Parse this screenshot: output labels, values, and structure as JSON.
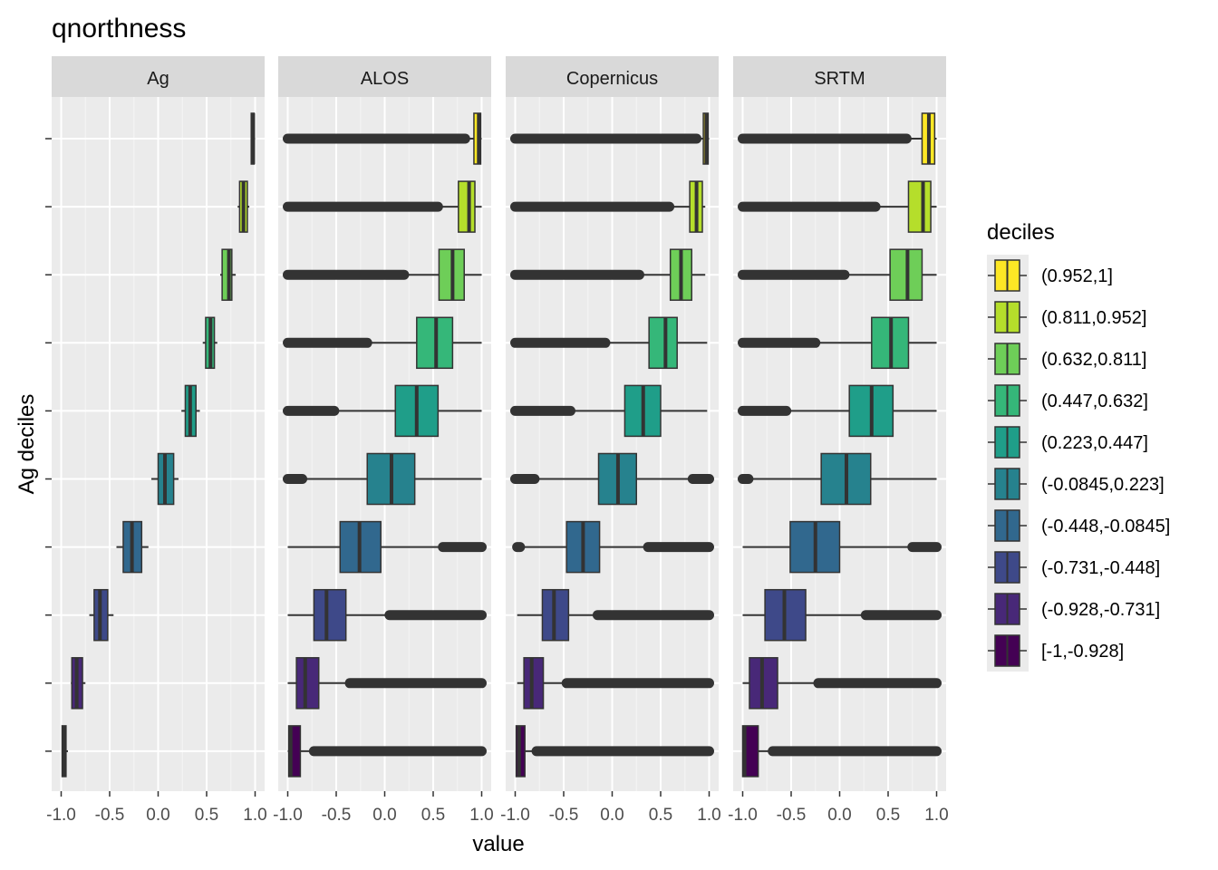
{
  "chart_data": {
    "type": "boxplot",
    "title": "qnorthness",
    "xlabel": "value",
    "ylabel": "Ag deciles",
    "xlim": [
      -1.0,
      1.0
    ],
    "x_ticks": [
      -1.0,
      -0.5,
      0.0,
      0.5,
      1.0
    ],
    "x_tick_labels": [
      "-1.0",
      "-0.5",
      "0.0",
      "0.5",
      "1.0"
    ],
    "orientation": "horizontal",
    "grid": true,
    "legend": {
      "title": "deciles",
      "position": "right",
      "entries": [
        {
          "label": "(0.952,1]",
          "color": "#FDE725"
        },
        {
          "label": "(0.811,0.952]",
          "color": "#B5DE2B"
        },
        {
          "label": "(0.632,0.811]",
          "color": "#6ECE58"
        },
        {
          "label": "(0.447,0.632]",
          "color": "#35B779"
        },
        {
          "label": "(0.223,0.447]",
          "color": "#1F9E89"
        },
        {
          "label": "(-0.0845,0.223]",
          "color": "#26828E"
        },
        {
          "label": "(-0.448,-0.0845]",
          "color": "#31688E"
        },
        {
          "label": "(-0.731,-0.448]",
          "color": "#3E4989"
        },
        {
          "label": "(-0.928,-0.731]",
          "color": "#482878"
        },
        {
          "label": "[-1,-0.928]",
          "color": "#440154"
        }
      ]
    },
    "panels": [
      {
        "name": "Ag",
        "boxes": [
          {
            "decile": 0,
            "wmin": 0.96,
            "q1": 0.96,
            "median": 0.98,
            "q3": 0.99,
            "wmax": 1.0,
            "outliers": []
          },
          {
            "decile": 1,
            "wmin": 0.82,
            "q1": 0.84,
            "median": 0.88,
            "q3": 0.92,
            "wmax": 0.94,
            "outliers": []
          },
          {
            "decile": 2,
            "wmin": 0.64,
            "q1": 0.66,
            "median": 0.73,
            "q3": 0.76,
            "wmax": 0.8,
            "outliers": []
          },
          {
            "decile": 3,
            "wmin": 0.46,
            "q1": 0.49,
            "median": 0.54,
            "q3": 0.58,
            "wmax": 0.61,
            "outliers": []
          },
          {
            "decile": 4,
            "wmin": 0.24,
            "q1": 0.28,
            "median": 0.33,
            "q3": 0.39,
            "wmax": 0.43,
            "outliers": []
          },
          {
            "decile": 5,
            "wmin": -0.07,
            "q1": 0.0,
            "median": 0.07,
            "q3": 0.16,
            "wmax": 0.21,
            "outliers": []
          },
          {
            "decile": 6,
            "wmin": -0.43,
            "q1": -0.36,
            "median": -0.27,
            "q3": -0.17,
            "wmax": -0.1,
            "outliers": []
          },
          {
            "decile": 7,
            "wmin": -0.71,
            "q1": -0.66,
            "median": -0.6,
            "q3": -0.52,
            "wmax": -0.46,
            "outliers": []
          },
          {
            "decile": 8,
            "wmin": -0.9,
            "q1": -0.89,
            "median": -0.84,
            "q3": -0.78,
            "wmax": -0.75,
            "outliers": []
          },
          {
            "decile": 9,
            "wmin": -0.99,
            "q1": -0.99,
            "median": -0.97,
            "q3": -0.95,
            "wmax": -0.93,
            "outliers": []
          }
        ]
      },
      {
        "name": "ALOS",
        "boxes": [
          {
            "decile": 0,
            "wmin": 0.86,
            "q1": 0.92,
            "median": 0.97,
            "q3": 0.99,
            "wmax": 1.0,
            "outliers": [
              [
                -1.0,
                0.83
              ]
            ]
          },
          {
            "decile": 1,
            "wmin": 0.56,
            "q1": 0.76,
            "median": 0.87,
            "q3": 0.93,
            "wmax": 1.0,
            "outliers": [
              [
                -1.0,
                0.55
              ]
            ]
          },
          {
            "decile": 2,
            "wmin": 0.21,
            "q1": 0.56,
            "median": 0.7,
            "q3": 0.82,
            "wmax": 1.0,
            "outliers": [
              [
                -1.0,
                0.2
              ]
            ]
          },
          {
            "decile": 3,
            "wmin": -0.17,
            "q1": 0.33,
            "median": 0.53,
            "q3": 0.7,
            "wmax": 1.0,
            "outliers": [
              [
                -1.0,
                -0.18
              ]
            ]
          },
          {
            "decile": 4,
            "wmin": -0.5,
            "q1": 0.11,
            "median": 0.33,
            "q3": 0.55,
            "wmax": 1.0,
            "outliers": [
              [
                -1.0,
                -0.52
              ]
            ]
          },
          {
            "decile": 5,
            "wmin": -0.85,
            "q1": -0.18,
            "median": 0.07,
            "q3": 0.31,
            "wmax": 1.0,
            "outliers": [
              [
                -1.0,
                -0.85
              ]
            ]
          },
          {
            "decile": 6,
            "wmin": -1.0,
            "q1": -0.46,
            "median": -0.26,
            "q3": -0.04,
            "wmax": 0.6,
            "outliers": [
              [
                0.6,
                1.0
              ]
            ]
          },
          {
            "decile": 7,
            "wmin": -1.0,
            "q1": -0.73,
            "median": -0.6,
            "q3": -0.4,
            "wmax": 0.05,
            "outliers": [
              [
                0.05,
                1.0
              ]
            ]
          },
          {
            "decile": 8,
            "wmin": -1.0,
            "q1": -0.91,
            "median": -0.82,
            "q3": -0.68,
            "wmax": -0.36,
            "outliers": [
              [
                -0.36,
                1.0
              ]
            ]
          },
          {
            "decile": 9,
            "wmin": -1.0,
            "q1": -0.99,
            "median": -0.97,
            "q3": -0.87,
            "wmax": -0.73,
            "outliers": [
              [
                -0.73,
                1.0
              ]
            ]
          }
        ]
      },
      {
        "name": "Copernicus",
        "boxes": [
          {
            "decile": 0,
            "wmin": 0.88,
            "q1": 0.94,
            "median": 0.97,
            "q3": 0.99,
            "wmax": 1.0,
            "outliers": [
              [
                -1.0,
                0.87
              ]
            ]
          },
          {
            "decile": 1,
            "wmin": 0.6,
            "q1": 0.8,
            "median": 0.87,
            "q3": 0.93,
            "wmax": 0.96,
            "outliers": [
              [
                -1.0,
                0.59
              ]
            ]
          },
          {
            "decile": 2,
            "wmin": 0.28,
            "q1": 0.6,
            "median": 0.71,
            "q3": 0.82,
            "wmax": 0.96,
            "outliers": [
              [
                -1.0,
                0.28
              ]
            ]
          },
          {
            "decile": 3,
            "wmin": -0.06,
            "q1": 0.38,
            "median": 0.55,
            "q3": 0.67,
            "wmax": 0.98,
            "outliers": [
              [
                -1.0,
                -0.07
              ]
            ]
          },
          {
            "decile": 4,
            "wmin": -0.43,
            "q1": 0.13,
            "median": 0.32,
            "q3": 0.5,
            "wmax": 0.98,
            "outliers": [
              [
                -1.0,
                -0.43
              ]
            ]
          },
          {
            "decile": 5,
            "wmin": -0.78,
            "q1": -0.14,
            "median": 0.06,
            "q3": 0.25,
            "wmax": 0.83,
            "outliers": [
              [
                -1.0,
                -0.8
              ],
              [
                0.83,
                1.0
              ]
            ]
          },
          {
            "decile": 6,
            "wmin": -0.92,
            "q1": -0.47,
            "median": -0.3,
            "q3": -0.13,
            "wmax": 0.37,
            "outliers": [
              [
                -0.98,
                -0.95
              ],
              [
                0.37,
                1.0
              ]
            ]
          },
          {
            "decile": 7,
            "wmin": -0.98,
            "q1": -0.72,
            "median": -0.6,
            "q3": -0.45,
            "wmax": -0.15,
            "outliers": [
              [
                -0.15,
                1.0
              ]
            ]
          },
          {
            "decile": 8,
            "wmin": -0.98,
            "q1": -0.91,
            "median": -0.83,
            "q3": -0.71,
            "wmax": -0.48,
            "outliers": [
              [
                -0.47,
                1.0
              ]
            ]
          },
          {
            "decile": 9,
            "wmin": -0.99,
            "q1": -0.99,
            "median": -0.96,
            "q3": -0.9,
            "wmax": -0.79,
            "outliers": [
              [
                -0.78,
                1.0
              ]
            ]
          }
        ]
      },
      {
        "name": "SRTM",
        "boxes": [
          {
            "decile": 0,
            "wmin": 0.7,
            "q1": 0.85,
            "median": 0.92,
            "q3": 0.98,
            "wmax": 1.0,
            "outliers": [
              [
                -1.0,
                0.69
              ]
            ]
          },
          {
            "decile": 1,
            "wmin": 0.38,
            "q1": 0.71,
            "median": 0.86,
            "q3": 0.94,
            "wmax": 1.0,
            "outliers": [
              [
                -1.0,
                0.37
              ]
            ]
          },
          {
            "decile": 2,
            "wmin": 0.05,
            "q1": 0.52,
            "median": 0.7,
            "q3": 0.85,
            "wmax": 1.0,
            "outliers": [
              [
                -1.0,
                0.05
              ]
            ]
          },
          {
            "decile": 3,
            "wmin": -0.24,
            "q1": 0.33,
            "median": 0.53,
            "q3": 0.71,
            "wmax": 1.0,
            "outliers": [
              [
                -1.0,
                -0.25
              ]
            ]
          },
          {
            "decile": 4,
            "wmin": -0.54,
            "q1": 0.1,
            "median": 0.33,
            "q3": 0.55,
            "wmax": 1.0,
            "outliers": [
              [
                -1.0,
                -0.55
              ]
            ]
          },
          {
            "decile": 5,
            "wmin": -0.92,
            "q1": -0.19,
            "median": 0.07,
            "q3": 0.32,
            "wmax": 1.0,
            "outliers": [
              [
                -1.0,
                -0.94
              ]
            ]
          },
          {
            "decile": 6,
            "wmin": -1.0,
            "q1": -0.51,
            "median": -0.25,
            "q3": 0.0,
            "wmax": 0.75,
            "outliers": [
              [
                0.75,
                1.0
              ]
            ]
          },
          {
            "decile": 7,
            "wmin": -1.0,
            "q1": -0.77,
            "median": -0.57,
            "q3": -0.35,
            "wmax": 0.27,
            "outliers": [
              [
                0.27,
                1.0
              ]
            ]
          },
          {
            "decile": 8,
            "wmin": -1.0,
            "q1": -0.93,
            "median": -0.8,
            "q3": -0.64,
            "wmax": -0.22,
            "outliers": [
              [
                -0.22,
                1.0
              ]
            ]
          },
          {
            "decile": 9,
            "wmin": -1.0,
            "q1": -1.0,
            "median": -0.98,
            "q3": -0.84,
            "wmax": -0.69,
            "outliers": [
              [
                -0.69,
                1.0
              ]
            ]
          }
        ]
      }
    ]
  }
}
